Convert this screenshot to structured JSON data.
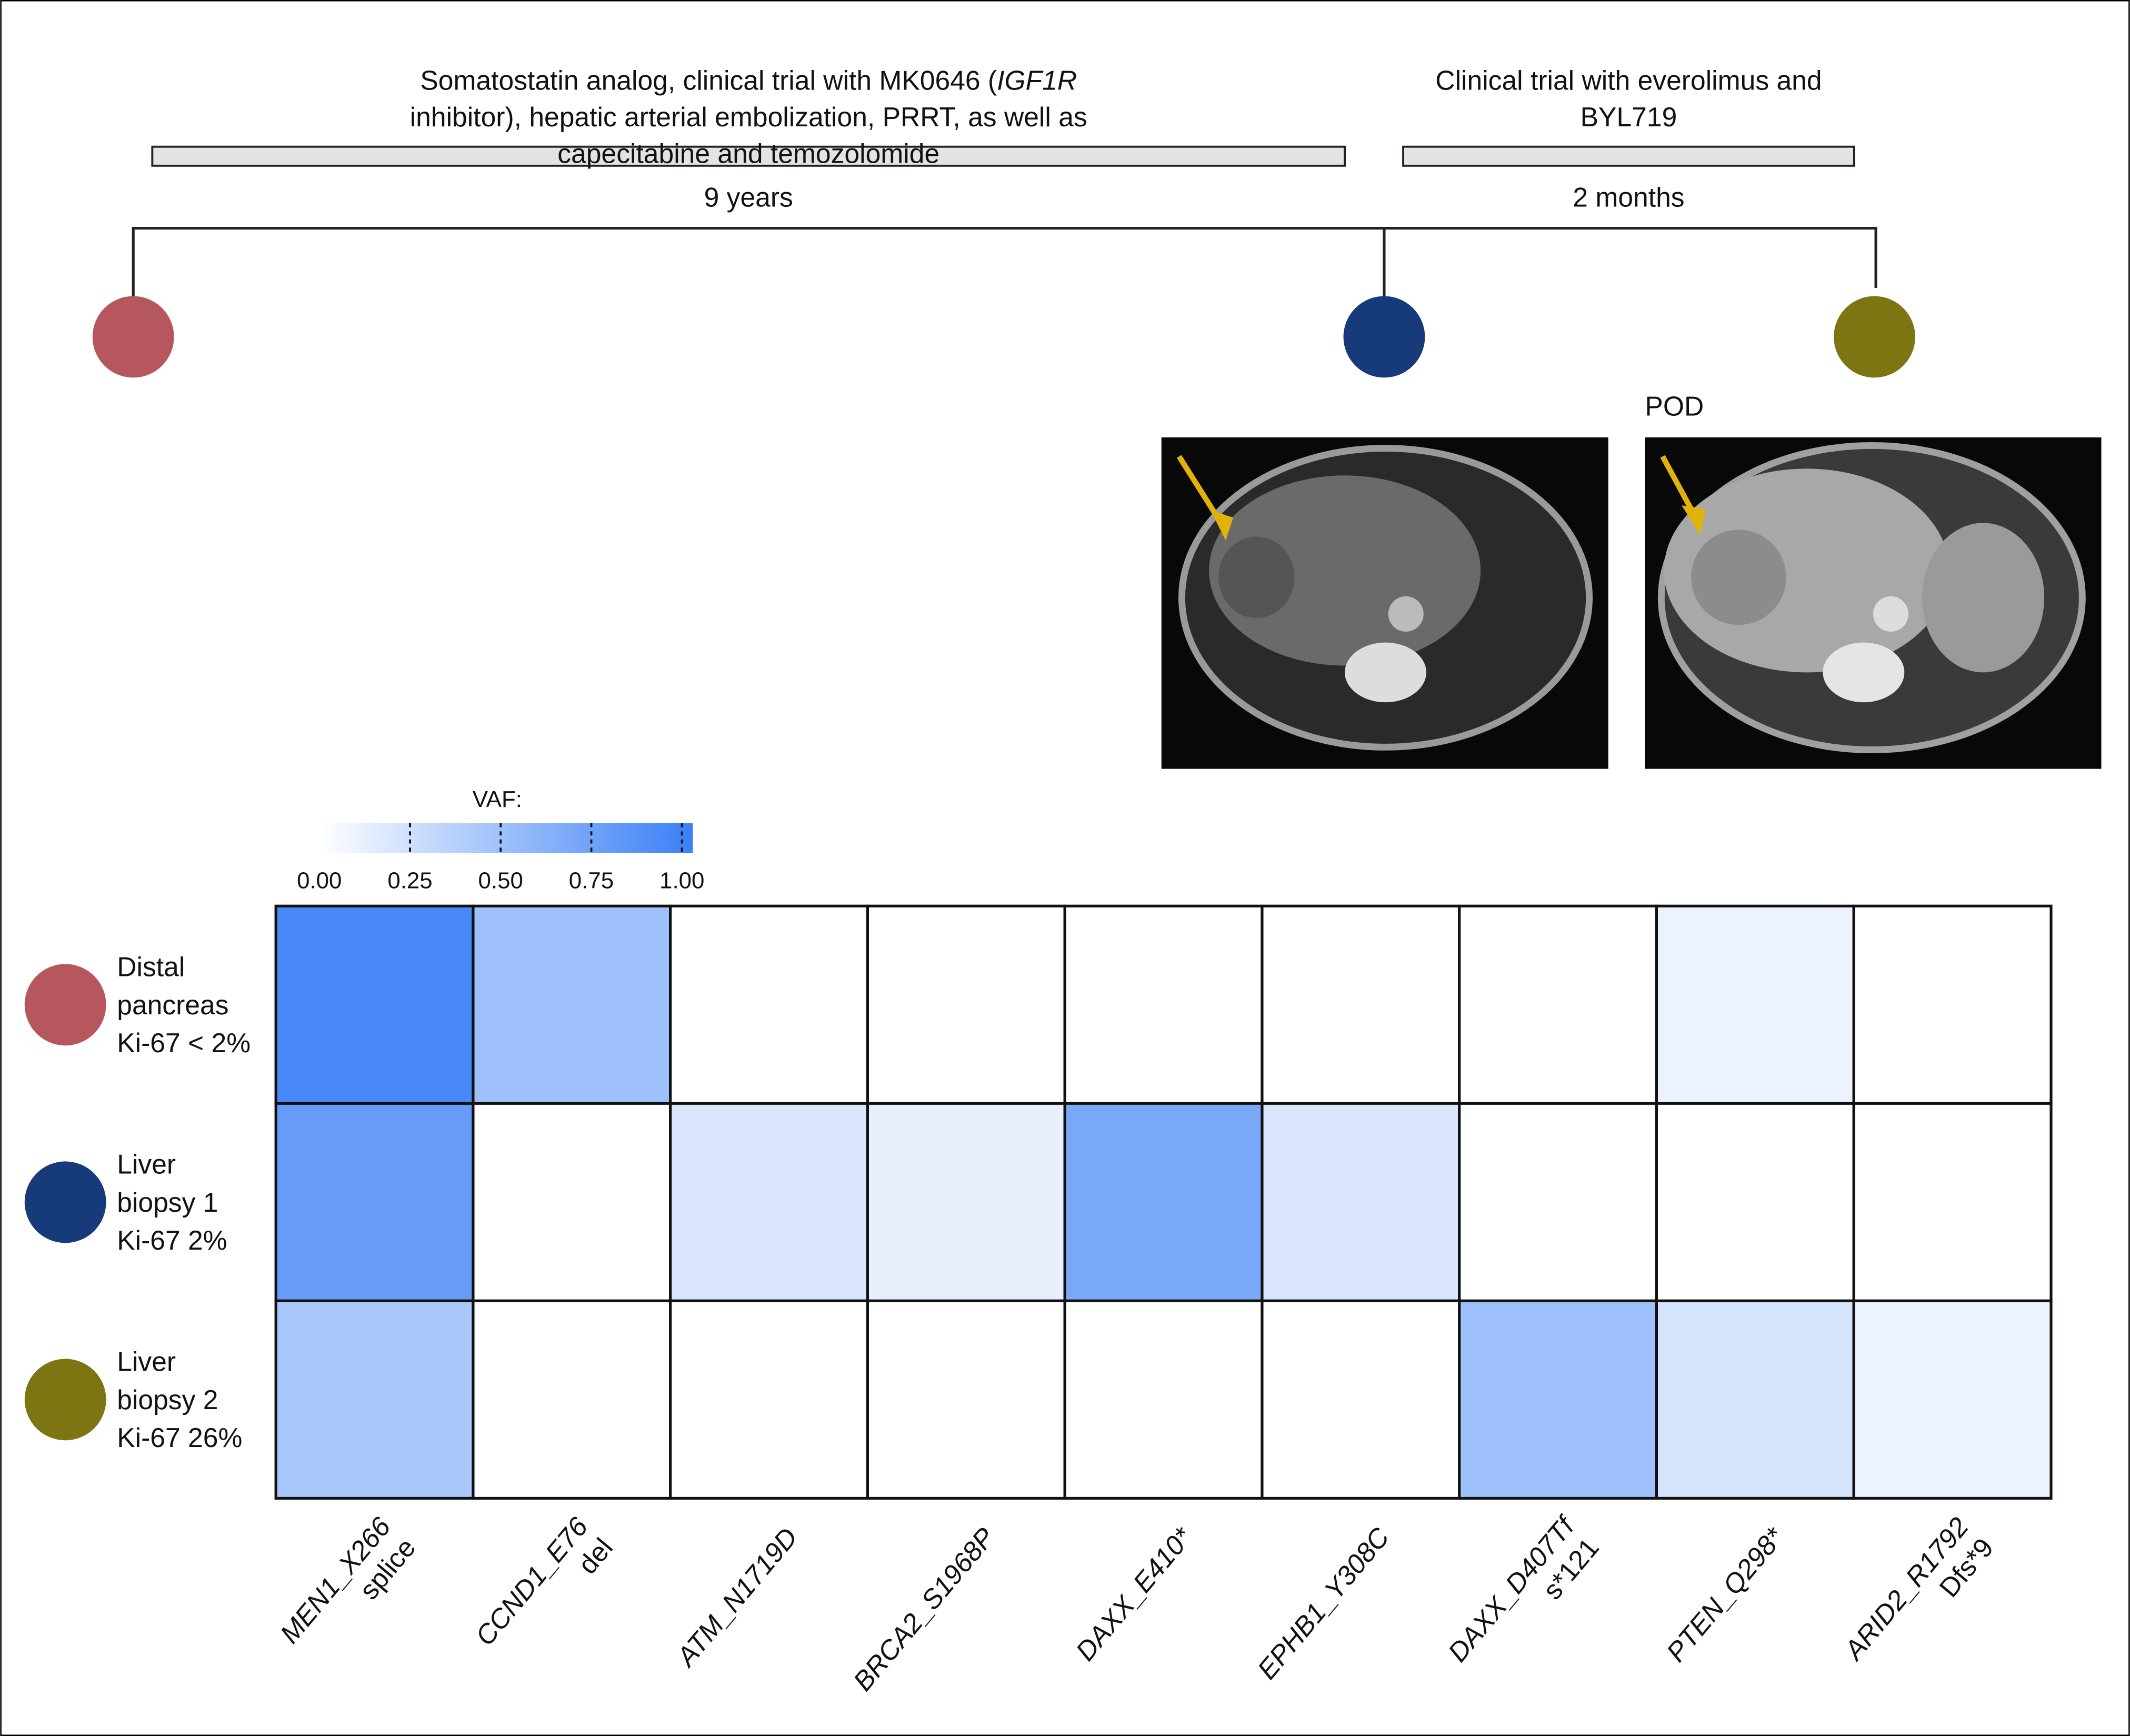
{
  "timeline": {
    "therapy_1": [
      [
        "Somatostatin analog, clinical trial with MK0646 (",
        "IGF1R",
        ""
      ],
      [
        "inhibitor), hepatic arterial embolization, PRRT, as well as"
      ],
      [
        "capecitabine and temozolomide"
      ]
    ],
    "therapy_2": [
      "Clinical trial with everolimus and",
      "BYL719"
    ],
    "duration_1": "9 years",
    "duration_2": "2 months",
    "image_label": "POD"
  },
  "chart_data": {
    "type": "heatmap",
    "colorbar_title": "VAF:",
    "clim": [
      0,
      1.03
    ],
    "cticks": [
      {
        "value": 0,
        "label": "0.00"
      },
      {
        "value": 0.25,
        "label": "0.25"
      },
      {
        "value": 0.5,
        "label": "0.50"
      },
      {
        "value": 0.75,
        "label": "0.75"
      },
      {
        "value": 1,
        "label": "1.00"
      }
    ],
    "color_low": "#ffffff",
    "color_high": "#3a7ff6",
    "categories": [
      [
        "MEN1_X266",
        "splice"
      ],
      [
        "CCND1_E76",
        "del"
      ],
      [
        "ATM_N1719D"
      ],
      [
        "BRCA2_S1968P"
      ],
      [
        "DAXX_E410*"
      ],
      [
        "EPHB1_Y308C"
      ],
      [
        "DAXX_D407Tf",
        "s*121"
      ],
      [
        "PTEN_Q298*"
      ],
      [
        "ARID2_R1792",
        "Dfs*9"
      ]
    ],
    "series": [
      {
        "name": [
          "Distal",
          "pancreas",
          "Ki-67 < 2%"
        ],
        "color": "#b5575c",
        "values": [
          0.95,
          0.5,
          0,
          0,
          0,
          0,
          0,
          0.1,
          0
        ]
      },
      {
        "name": [
          "Liver",
          "biopsy 1",
          "Ki-67 2%"
        ],
        "color": "#163a7a",
        "values": [
          0.8,
          0,
          0.2,
          0.12,
          0.7,
          0.2,
          0,
          0,
          0
        ]
      },
      {
        "name": [
          "Liver",
          "biopsy 2",
          "Ki-67 26%"
        ],
        "color": "#7d7512",
        "values": [
          0.45,
          0,
          0,
          0,
          0,
          0,
          0.5,
          0.22,
          0.1
        ]
      }
    ]
  }
}
